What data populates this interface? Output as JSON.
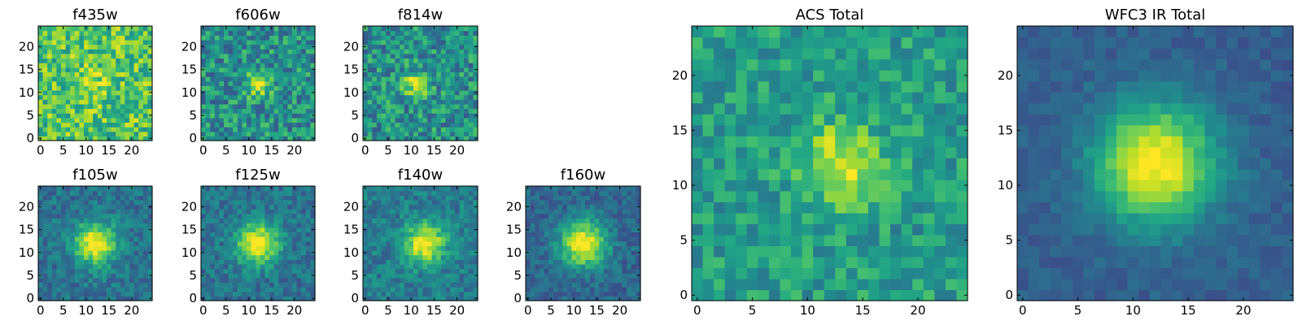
{
  "chart_data": [
    {
      "type": "heatmap",
      "title": "f435w",
      "colormap": "viridis",
      "grid_size": 25,
      "peak": [
        12,
        12
      ],
      "peak_width": 2.5,
      "peak_amplitude": 0.15,
      "noise": 0.45,
      "background": 0.72,
      "x_ticks": [
        0,
        5,
        10,
        15,
        20
      ],
      "y_ticks": [
        0,
        5,
        10,
        15,
        20
      ],
      "xlim": [
        0,
        24
      ],
      "ylim": [
        0,
        24
      ]
    },
    {
      "type": "heatmap",
      "title": "f606w",
      "colormap": "viridis",
      "grid_size": 25,
      "peak": [
        12,
        12
      ],
      "peak_width": 1.8,
      "peak_amplitude": 0.55,
      "noise": 0.45,
      "background": 0.5,
      "x_ticks": [
        0,
        5,
        10,
        15,
        20
      ],
      "y_ticks": [
        0,
        5,
        10,
        15,
        20
      ],
      "xlim": [
        0,
        24
      ],
      "ylim": [
        0,
        24
      ]
    },
    {
      "type": "heatmap",
      "title": "f814w",
      "colormap": "viridis",
      "grid_size": 25,
      "peak": [
        11,
        12
      ],
      "peak_width": 1.8,
      "peak_amplitude": 0.5,
      "noise": 0.45,
      "background": 0.5,
      "x_ticks": [
        0,
        5,
        10,
        15,
        20
      ],
      "y_ticks": [
        0,
        5,
        10,
        15,
        20
      ],
      "xlim": [
        0,
        24
      ],
      "ylim": [
        0,
        24
      ]
    },
    {
      "type": "heatmap",
      "title": "f105w",
      "colormap": "viridis",
      "grid_size": 25,
      "peak": [
        12,
        12
      ],
      "peak_width": 3.2,
      "peak_amplitude": 0.65,
      "noise": 0.25,
      "background": 0.38,
      "x_ticks": [
        0,
        5,
        10,
        15,
        20
      ],
      "y_ticks": [
        0,
        5,
        10,
        15,
        20
      ],
      "xlim": [
        0,
        24
      ],
      "ylim": [
        0,
        24
      ]
    },
    {
      "type": "heatmap",
      "title": "f125w",
      "colormap": "viridis",
      "grid_size": 25,
      "peak": [
        12,
        12
      ],
      "peak_width": 3.2,
      "peak_amplitude": 0.65,
      "noise": 0.25,
      "background": 0.38,
      "x_ticks": [
        0,
        5,
        10,
        15,
        20
      ],
      "y_ticks": [
        0,
        5,
        10,
        15,
        20
      ],
      "xlim": [
        0,
        24
      ],
      "ylim": [
        0,
        24
      ]
    },
    {
      "type": "heatmap",
      "title": "f140w",
      "colormap": "viridis",
      "grid_size": 25,
      "peak": [
        13,
        12
      ],
      "peak_width": 3.0,
      "peak_amplitude": 0.62,
      "noise": 0.25,
      "background": 0.42,
      "x_ticks": [
        0,
        5,
        10,
        15,
        20
      ],
      "y_ticks": [
        0,
        5,
        10,
        15,
        20
      ],
      "xlim": [
        0,
        24
      ],
      "ylim": [
        0,
        24
      ]
    },
    {
      "type": "heatmap",
      "title": "f160w",
      "colormap": "viridis",
      "grid_size": 25,
      "peak": [
        12,
        12
      ],
      "peak_width": 3.5,
      "peak_amplitude": 0.7,
      "noise": 0.22,
      "background": 0.33,
      "x_ticks": [
        0,
        5,
        10,
        15,
        20
      ],
      "y_ticks": [
        0,
        5,
        10,
        15,
        20
      ],
      "xlim": [
        0,
        24
      ],
      "ylim": [
        0,
        24
      ]
    },
    {
      "type": "heatmap",
      "title": "ACS Total",
      "colormap": "viridis",
      "grid_size": 25,
      "peak": [
        13,
        12
      ],
      "peak_width": 2.6,
      "peak_amplitude": 0.38,
      "noise": 0.32,
      "background": 0.55,
      "x_ticks": [
        0,
        5,
        10,
        15,
        20
      ],
      "y_ticks": [
        0,
        5,
        10,
        15,
        20
      ],
      "xlim": [
        0,
        24
      ],
      "ylim": [
        0,
        24
      ]
    },
    {
      "type": "heatmap",
      "title": "WFC3 IR Total",
      "colormap": "viridis",
      "grid_size": 25,
      "peak": [
        12,
        12
      ],
      "peak_width": 3.8,
      "peak_amplitude": 0.72,
      "noise": 0.12,
      "background": 0.3,
      "x_ticks": [
        0,
        5,
        10,
        15,
        20
      ],
      "y_ticks": [
        0,
        5,
        10,
        15,
        20
      ],
      "xlim": [
        0,
        24
      ],
      "ylim": [
        0,
        24
      ]
    }
  ]
}
